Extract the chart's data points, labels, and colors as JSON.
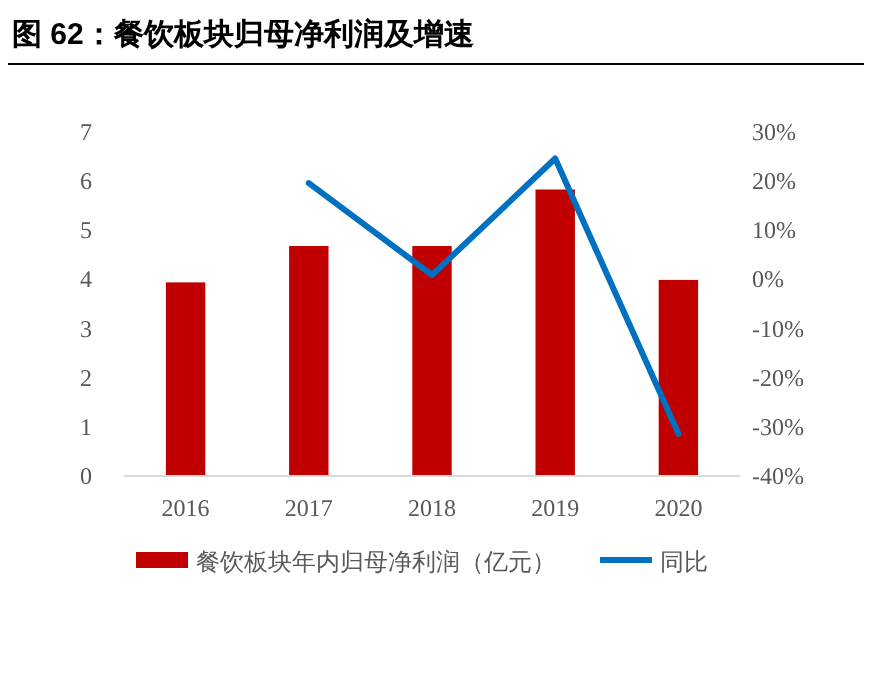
{
  "chart_data": {
    "type": "bar",
    "title": "图 62：餐饮板块归母净利润及增速",
    "categories": [
      "2016",
      "2017",
      "2018",
      "2019",
      "2020"
    ],
    "series": [
      {
        "name": "餐饮板块年内归母净利润（亿元）",
        "color": "#c00000",
        "values": [
          3.94,
          4.68,
          4.68,
          5.83,
          3.99
        ]
      },
      {
        "name": "同比",
        "type": "line",
        "axis": "y2",
        "color": "#0070c0",
        "values": [
          null,
          19.6,
          0.9,
          24.6,
          -31.4
        ]
      }
    ],
    "ylim": [
      0,
      7
    ],
    "yticks": [
      0,
      1,
      2,
      3,
      4,
      5,
      6,
      7
    ],
    "y2lim": [
      -40,
      30
    ],
    "y2ticks": [
      {
        "value": -40,
        "label": "-40%"
      },
      {
        "value": -30,
        "label": "-30%"
      },
      {
        "value": -20,
        "label": "-20%"
      },
      {
        "value": -10,
        "label": "-10%"
      },
      {
        "value": 0,
        "label": "0%"
      },
      {
        "value": 10,
        "label": "10%"
      },
      {
        "value": 20,
        "label": "20%"
      },
      {
        "value": 30,
        "label": "30%"
      }
    ],
    "grid": false,
    "legend": "bottom"
  }
}
